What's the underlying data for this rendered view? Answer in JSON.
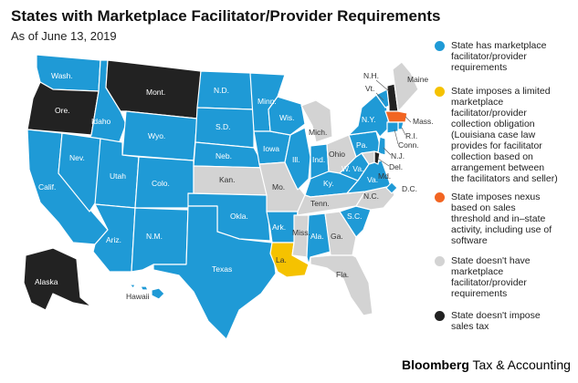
{
  "title": "States with Marketplace Facilitator/Provider Requirements",
  "subtitle": "As of June 13, 2019",
  "colors": {
    "has_requirement": "#1f9ad6",
    "limited_obligation": "#f5c200",
    "nexus": "#f26522",
    "no_requirement": "#d3d3d3",
    "no_sales_tax": "#222222",
    "border": "#ffffff"
  },
  "legend": [
    {
      "key": "has_requirement",
      "text": "State has marketplace\nfacilitator/provider\nrequirements"
    },
    {
      "key": "limited_obligation",
      "text": "State imposes a limited\nmarketplace\nfacilitator/provider\ncollection obligation\n(Louisiana case law\nprovides for facilitator\ncollection based on\narrangement between\nthe facilitators and seller)"
    },
    {
      "key": "nexus",
      "text": "State imposes nexus\nbased on sales\nthreshold and in–state\nactivity, including use of\nsoftware"
    },
    {
      "key": "no_requirement",
      "text": "State doesn't have\nmarketplace\nfacilitator/provider\nrequirements"
    },
    {
      "key": "no_sales_tax",
      "text": "State doesn't impose\nsales tax"
    }
  ],
  "states": {
    "WA": {
      "label": "Wash.",
      "status": "has_requirement"
    },
    "OR": {
      "label": "Ore.",
      "status": "no_sales_tax"
    },
    "CA": {
      "label": "Calif.",
      "status": "has_requirement"
    },
    "ID": {
      "label": "Idaho",
      "status": "has_requirement"
    },
    "NV": {
      "label": "Nev.",
      "status": "has_requirement"
    },
    "MT": {
      "label": "Mont.",
      "status": "no_sales_tax"
    },
    "WY": {
      "label": "Wyo.",
      "status": "has_requirement"
    },
    "UT": {
      "label": "Utah",
      "status": "has_requirement"
    },
    "AZ": {
      "label": "Ariz.",
      "status": "has_requirement"
    },
    "CO": {
      "label": "Colo.",
      "status": "has_requirement"
    },
    "NM": {
      "label": "N.M.",
      "status": "has_requirement"
    },
    "ND": {
      "label": "N.D.",
      "status": "has_requirement"
    },
    "SD": {
      "label": "S.D.",
      "status": "has_requirement"
    },
    "NE": {
      "label": "Neb.",
      "status": "has_requirement"
    },
    "KS": {
      "label": "Kan.",
      "status": "no_requirement"
    },
    "OK": {
      "label": "Okla.",
      "status": "has_requirement"
    },
    "TX": {
      "label": "Texas",
      "status": "has_requirement"
    },
    "MN": {
      "label": "Minn.",
      "status": "has_requirement"
    },
    "IA": {
      "label": "Iowa",
      "status": "has_requirement"
    },
    "MO": {
      "label": "Mo.",
      "status": "no_requirement"
    },
    "AR": {
      "label": "Ark.",
      "status": "has_requirement"
    },
    "LA": {
      "label": "La.",
      "status": "limited_obligation"
    },
    "WI": {
      "label": "Wis.",
      "status": "has_requirement"
    },
    "IL": {
      "label": "Ill.",
      "status": "has_requirement"
    },
    "MI": {
      "label": "Mich.",
      "status": "no_requirement"
    },
    "IN": {
      "label": "Ind.",
      "status": "has_requirement"
    },
    "OH": {
      "label": "Ohio",
      "status": "no_requirement"
    },
    "KY": {
      "label": "Ky.",
      "status": "has_requirement"
    },
    "TN": {
      "label": "Tenn.",
      "status": "no_requirement"
    },
    "MS": {
      "label": "Miss.",
      "status": "no_requirement"
    },
    "AL": {
      "label": "Ala.",
      "status": "has_requirement"
    },
    "GA": {
      "label": "Ga.",
      "status": "no_requirement"
    },
    "FL": {
      "label": "Fla.",
      "status": "no_requirement"
    },
    "SC": {
      "label": "S.C.",
      "status": "has_requirement"
    },
    "NC": {
      "label": "N.C.",
      "status": "no_requirement"
    },
    "VA": {
      "label": "Va.",
      "status": "has_requirement"
    },
    "WV": {
      "label": "W. Va.",
      "status": "has_requirement"
    },
    "PA": {
      "label": "Pa.",
      "status": "has_requirement"
    },
    "NY": {
      "label": "N.Y.",
      "status": "has_requirement"
    },
    "VT": {
      "label": "Vt.",
      "status": "has_requirement"
    },
    "NH": {
      "label": "N.H.",
      "status": "no_sales_tax"
    },
    "ME": {
      "label": "Maine",
      "status": "no_requirement"
    },
    "MA": {
      "label": "Mass.",
      "status": "nexus"
    },
    "RI": {
      "label": "R.I.",
      "status": "has_requirement"
    },
    "CT": {
      "label": "Conn.",
      "status": "has_requirement"
    },
    "NJ": {
      "label": "N.J.",
      "status": "has_requirement"
    },
    "DE": {
      "label": "Del.",
      "status": "no_sales_tax"
    },
    "MD": {
      "label": "Md.",
      "status": "no_requirement"
    },
    "DC": {
      "label": "D.C.",
      "status": "has_requirement"
    },
    "AK": {
      "label": "Alaska",
      "status": "no_sales_tax"
    },
    "HI": {
      "label": "Hawaii",
      "status": "has_requirement"
    }
  },
  "brand": {
    "bold": "Bloomberg",
    "rest": " Tax & Accounting"
  }
}
